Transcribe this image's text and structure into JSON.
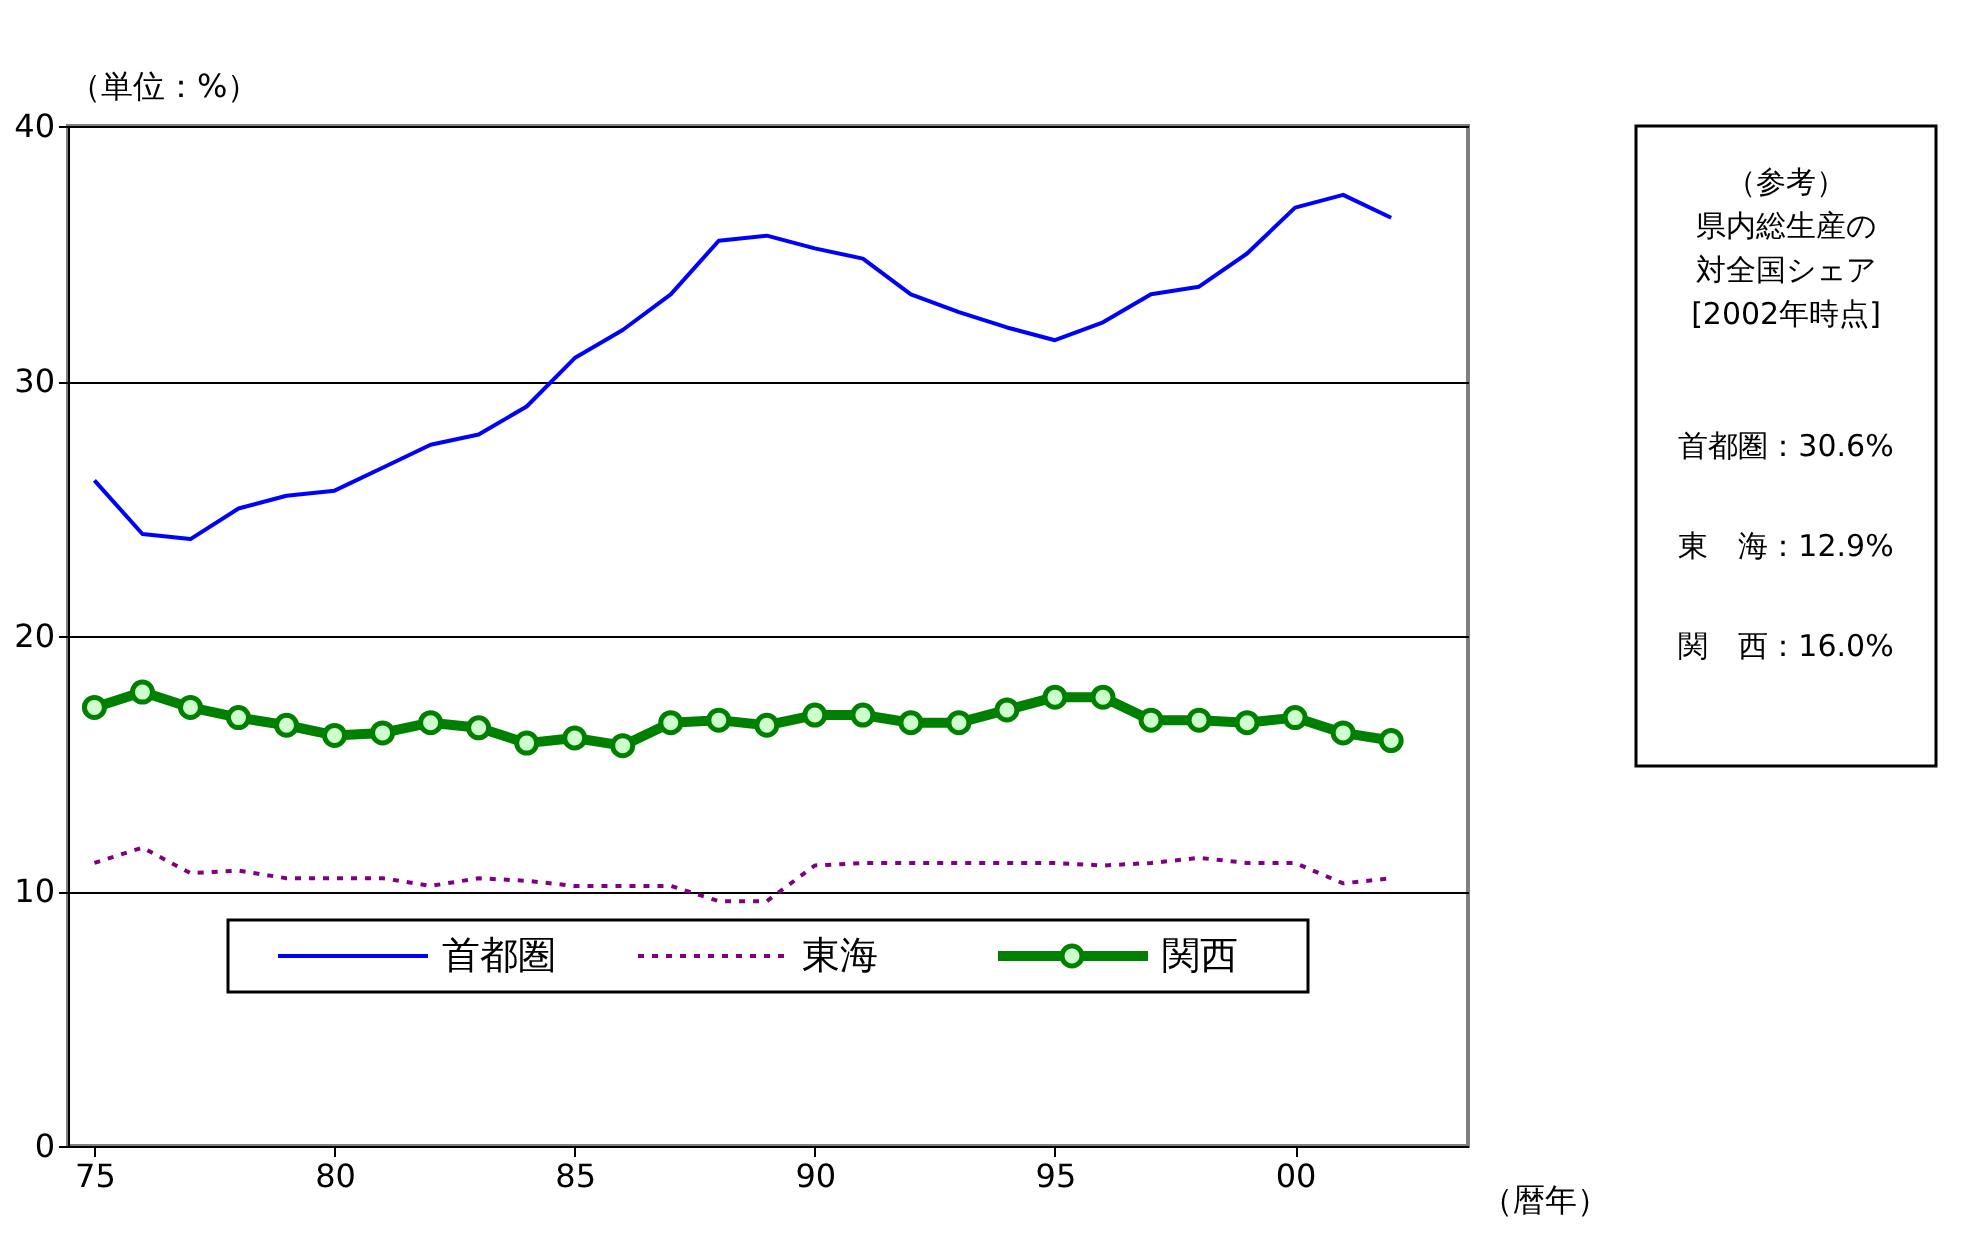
{
  "chart_data": {
    "type": "line",
    "ylabel": "（単位：%）",
    "xlabel": "（暦年）",
    "x": [
      1975,
      1976,
      1977,
      1978,
      1979,
      1980,
      1981,
      1982,
      1983,
      1984,
      1985,
      1986,
      1987,
      1988,
      1989,
      1990,
      1991,
      1992,
      1993,
      1994,
      1995,
      1996,
      1997,
      1998,
      1999,
      2000,
      2001,
      2002
    ],
    "series": [
      {
        "name": "首都圏",
        "color": "#0000ff",
        "line_style": "solid",
        "marker": "none",
        "values": [
          26.1,
          24.0,
          23.8,
          25.0,
          25.5,
          25.7,
          26.6,
          27.5,
          27.9,
          29.0,
          30.9,
          32.0,
          33.4,
          35.5,
          35.7,
          35.2,
          34.8,
          33.4,
          32.7,
          32.1,
          31.6,
          32.3,
          33.4,
          33.7,
          35.0,
          36.8,
          37.3,
          36.4
        ]
      },
      {
        "name": "東海",
        "color": "#800080",
        "line_style": "dotted",
        "marker": "none",
        "values": [
          11.1,
          11.7,
          10.7,
          10.8,
          10.5,
          10.5,
          10.5,
          10.2,
          10.5,
          10.4,
          10.2,
          10.2,
          10.2,
          9.6,
          9.6,
          11.0,
          11.1,
          11.1,
          11.1,
          11.1,
          11.1,
          11.0,
          11.1,
          11.3,
          11.1,
          11.1,
          10.3,
          10.5
        ]
      },
      {
        "name": "関西",
        "color": "#008000",
        "line_style": "solid",
        "marker": "circle",
        "values": [
          17.2,
          17.8,
          17.2,
          16.8,
          16.5,
          16.1,
          16.2,
          16.6,
          16.4,
          15.8,
          16.0,
          15.7,
          16.6,
          16.7,
          16.5,
          16.9,
          16.9,
          16.6,
          16.6,
          17.1,
          17.6,
          17.6,
          16.7,
          16.7,
          16.6,
          16.8,
          16.2,
          15.9
        ]
      }
    ],
    "xlim": [
      1974.45,
      2003.6
    ],
    "xticks": [
      {
        "value": 1975,
        "label": "75"
      },
      {
        "value": 1980,
        "label": "80"
      },
      {
        "value": 1985,
        "label": "85"
      },
      {
        "value": 1990,
        "label": "90"
      },
      {
        "value": 1995,
        "label": "95"
      },
      {
        "value": 2000,
        "label": "00"
      }
    ],
    "ylim": [
      0,
      40
    ],
    "yticks": [
      0,
      10,
      20,
      30,
      40
    ],
    "grid": "y",
    "legend": "bottom",
    "annotations": [
      "（参考）",
      "県内総生産の",
      "対全国シェア",
      "[2002年時点]",
      "首都圏：30.6%",
      "東　海：12.9%",
      "関　西：16.0%"
    ]
  }
}
